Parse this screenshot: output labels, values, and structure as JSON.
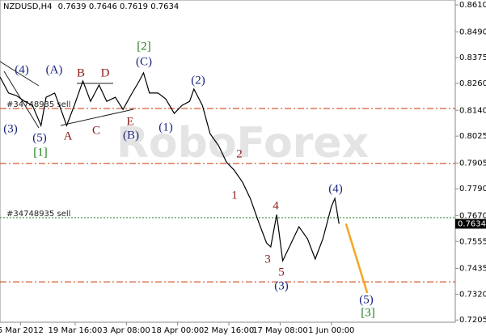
{
  "chart_data": {
    "type": "line",
    "header": {
      "symbol": "NZDUSD,H4",
      "open": 0.7639,
      "high": 0.7646,
      "low": 0.7619,
      "close": 0.7634
    },
    "watermark": "RoboForex",
    "x": [
      -24,
      -14,
      -5,
      5,
      14,
      24,
      30,
      40,
      49,
      54,
      63,
      73,
      82,
      92,
      101,
      111,
      120,
      129,
      139,
      144,
      151,
      161,
      170,
      180,
      189,
      198,
      203,
      213,
      222,
      232,
      241,
      250,
      260,
      269,
      279,
      288,
      293,
      300,
      307,
      317,
      326,
      336,
      345,
      354,
      364,
      368,
      373
    ],
    "series": [
      {
        "name": "NZDUSD,H4",
        "color": "#000000",
        "values": [
          0.8289,
          0.8217,
          0.8206,
          0.818,
          0.8162,
          0.8072,
          0.8198,
          0.8217,
          0.8126,
          0.8072,
          0.8162,
          0.8271,
          0.818,
          0.8253,
          0.818,
          0.8198,
          0.8144,
          0.8206,
          0.8271,
          0.8307,
          0.8217,
          0.8217,
          0.8191,
          0.8126,
          0.8162,
          0.818,
          0.8235,
          0.8162,
          0.8036,
          0.7982,
          0.791,
          0.7874,
          0.7819,
          0.7747,
          0.7639,
          0.7549,
          0.7531,
          0.7675,
          0.7469,
          0.7549,
          0.7621,
          0.7567,
          0.7477,
          0.7567,
          0.7711,
          0.7747,
          0.7634
        ]
      }
    ],
    "xlim": [
      -24,
      509
    ],
    "xticks": [
      {
        "value": 0,
        "label": "5 Mar 2012"
      },
      {
        "value": 64,
        "label": "19 Mar 16:00"
      },
      {
        "value": 124,
        "label": "3 Apr 08:00"
      },
      {
        "value": 184,
        "label": "18 Apr 00:00"
      },
      {
        "value": 244,
        "label": "2 May 16:00"
      },
      {
        "value": 304,
        "label": "17 May 08:00"
      },
      {
        "value": 364,
        "label": "1 Jun 00:00"
      }
    ],
    "ylim": [
      0.7195,
      0.8632
    ],
    "yticks": [
      {
        "value": 0.861,
        "label": "0.8610"
      },
      {
        "value": 0.849,
        "label": "0.8490"
      },
      0.8375,
      {
        "value": 0.826,
        "label": "0.8260"
      },
      {
        "value": 0.814,
        "label": "0.8140"
      },
      0.8025,
      0.7905,
      {
        "value": 0.779,
        "label": "0.7790"
      },
      {
        "value": 0.767,
        "label": "0.7670"
      },
      0.7555,
      0.7435,
      {
        "value": 0.732,
        "label": "0.7320"
      },
      0.7205
    ],
    "levels": [
      {
        "value": 0.8148,
        "color": "#cc3300",
        "label": "#34748935 sell"
      },
      {
        "value": 0.7903,
        "color": "#cc3300"
      },
      {
        "value": 0.7661,
        "color": "#2e8b2e",
        "label": "#34748935 sell"
      },
      {
        "value": 0.7375,
        "color": "#cc3300"
      }
    ],
    "projection": {
      "color": "#f5a623",
      "x": [
        381,
        406
      ],
      "y": [
        0.7634,
        0.7325
      ]
    },
    "annotations": [
      {
        "text": "(4)",
        "color": "#1a237e"
      },
      {
        "text": "(A)",
        "color": "#1a237e"
      },
      {
        "text": "B",
        "color": "#8b1a1a"
      },
      {
        "text": "D",
        "color": "#8b1a1a"
      },
      {
        "text": "[2]",
        "color": "#1e7b1e"
      },
      {
        "text": "(C)",
        "color": "#1a237e"
      },
      {
        "text": "(2)",
        "color": "#1a237e"
      },
      {
        "text": "(3)",
        "color": "#1a237e"
      },
      {
        "text": "(5)",
        "color": "#1a237e"
      },
      {
        "text": "[1]",
        "color": "#1e7b1e"
      },
      {
        "text": "A",
        "color": "#8b1a1a"
      },
      {
        "text": "C",
        "color": "#8b1a1a"
      },
      {
        "text": "E",
        "color": "#8b1a1a"
      },
      {
        "text": "(B)",
        "color": "#1a237e"
      },
      {
        "text": "(1)",
        "color": "#1a237e"
      },
      {
        "text": "2",
        "color": "#8b1a1a"
      },
      {
        "text": "1",
        "color": "#8b1a1a"
      },
      {
        "text": "4",
        "color": "#8b1a1a"
      },
      {
        "text": "3",
        "color": "#8b1a1a"
      },
      {
        "text": "5",
        "color": "#8b1a1a"
      },
      {
        "text": "(3)",
        "color": "#1a237e"
      },
      {
        "text": "(4)",
        "color": "#1a237e"
      },
      {
        "text": "(5)",
        "color": "#1a237e"
      },
      {
        "text": "[3]",
        "color": "#1e7b1e"
      }
    ]
  }
}
